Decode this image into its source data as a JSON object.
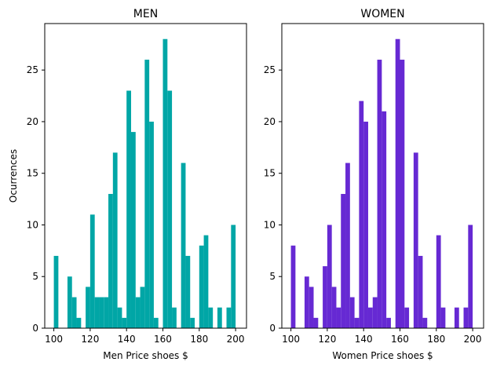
{
  "chart_data": [
    {
      "type": "bar",
      "title": "MEN",
      "xlabel": "Men Price shoes $",
      "ylabel": "Ocurrences",
      "color": "#00a6a6",
      "xlim": [
        95,
        206
      ],
      "ylim": [
        0,
        29.5
      ],
      "xticks": [
        100,
        120,
        140,
        160,
        180,
        200
      ],
      "yticks": [
        0,
        5,
        10,
        15,
        20,
        25
      ],
      "bin_width": 2.5,
      "bin_starts": [
        100,
        102.5,
        105,
        107.5,
        110,
        112.5,
        115,
        117.5,
        120,
        122.5,
        125,
        127.5,
        130,
        132.5,
        135,
        137.5,
        140,
        142.5,
        145,
        147.5,
        150,
        152.5,
        155,
        157.5,
        160,
        162.5,
        165,
        167.5,
        170,
        172.5,
        175,
        177.5,
        180,
        182.5,
        185,
        187.5,
        190,
        192.5,
        195,
        197.5
      ],
      "values": [
        7,
        0,
        0,
        5,
        3,
        1,
        0,
        4,
        11,
        3,
        3,
        3,
        13,
        17,
        2,
        1,
        23,
        19,
        3,
        4,
        26,
        20,
        1,
        0,
        28,
        23,
        2,
        0,
        16,
        7,
        1,
        0,
        8,
        9,
        2,
        0,
        2,
        0,
        2,
        10
      ]
    },
    {
      "type": "bar",
      "title": "WOMEN",
      "xlabel": "Women Price shoes $",
      "ylabel": "",
      "color": "#6629d3",
      "xlim": [
        95,
        206
      ],
      "ylim": [
        0,
        29.5
      ],
      "xticks": [
        100,
        120,
        140,
        160,
        180,
        200
      ],
      "yticks": [
        0,
        5,
        10,
        15,
        20,
        25
      ],
      "bin_width": 2.5,
      "bin_starts": [
        100,
        102.5,
        105,
        107.5,
        110,
        112.5,
        115,
        117.5,
        120,
        122.5,
        125,
        127.5,
        130,
        132.5,
        135,
        137.5,
        140,
        142.5,
        145,
        147.5,
        150,
        152.5,
        155,
        157.5,
        160,
        162.5,
        165,
        167.5,
        170,
        172.5,
        175,
        177.5,
        180,
        182.5,
        185,
        187.5,
        190,
        192.5,
        195,
        197.5
      ],
      "values": [
        8,
        0,
        0,
        5,
        4,
        1,
        0,
        6,
        10,
        4,
        2,
        13,
        16,
        3,
        1,
        22,
        20,
        2,
        3,
        26,
        21,
        1,
        0,
        28,
        26,
        2,
        0,
        17,
        7,
        1,
        0,
        0,
        9,
        2,
        0,
        0,
        2,
        0,
        2,
        10
      ]
    }
  ]
}
